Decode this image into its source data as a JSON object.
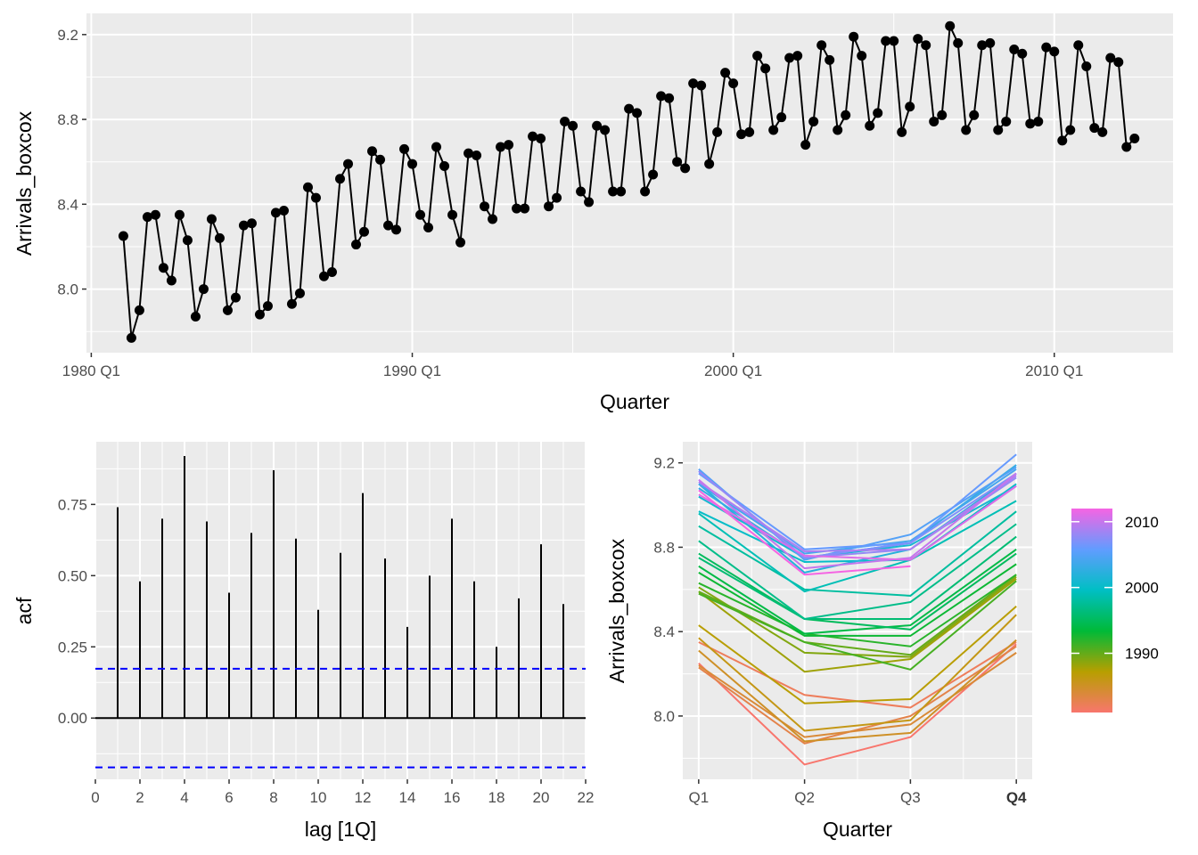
{
  "chart_data": [
    {
      "type": "line",
      "panel": "time-plot",
      "xlabel": "Quarter",
      "ylabel": "Arrivals_boxcox",
      "x_tick_labels": [
        "1980 Q1",
        "1990 Q1",
        "2000 Q1",
        "2010 Q1"
      ],
      "x_tick_years": [
        1980,
        1990,
        2000,
        2010
      ],
      "y_ticks": [
        8.0,
        8.4,
        8.8,
        9.2
      ],
      "y_tick_labels": [
        "8.0",
        "8.4",
        "8.8",
        "9.2"
      ],
      "xlim": [
        1979.85,
        2013.7
      ],
      "ylim": [
        7.7,
        9.3
      ],
      "grid": true,
      "markers": true,
      "series_start": "1981 Q1",
      "values": [
        8.25,
        7.77,
        7.9,
        8.34,
        8.35,
        8.1,
        8.04,
        8.35,
        8.23,
        7.87,
        8.0,
        8.33,
        8.24,
        7.9,
        7.96,
        8.3,
        8.31,
        7.88,
        7.92,
        8.36,
        8.37,
        7.93,
        7.98,
        8.48,
        8.43,
        8.06,
        8.08,
        8.52,
        8.59,
        8.21,
        8.27,
        8.65,
        8.61,
        8.3,
        8.28,
        8.66,
        8.59,
        8.35,
        8.29,
        8.67,
        8.58,
        8.35,
        8.22,
        8.64,
        8.63,
        8.39,
        8.33,
        8.67,
        8.68,
        8.38,
        8.38,
        8.72,
        8.71,
        8.39,
        8.43,
        8.79,
        8.77,
        8.46,
        8.41,
        8.77,
        8.75,
        8.46,
        8.46,
        8.85,
        8.83,
        8.46,
        8.54,
        8.91,
        8.9,
        8.6,
        8.57,
        8.97,
        8.96,
        8.59,
        8.74,
        9.02,
        8.97,
        8.73,
        8.74,
        9.1,
        9.04,
        8.75,
        8.81,
        9.09,
        9.1,
        8.68,
        8.79,
        9.15,
        9.08,
        8.75,
        8.82,
        9.19,
        9.1,
        8.77,
        8.83,
        9.17,
        9.17,
        8.74,
        8.86,
        9.18,
        9.15,
        8.79,
        8.82,
        9.24,
        9.16,
        8.75,
        8.82,
        9.15,
        9.16,
        8.75,
        8.79,
        9.13,
        9.11,
        8.78,
        8.79,
        9.14,
        9.12,
        8.7,
        8.75,
        9.15,
        9.05,
        8.76,
        8.74,
        9.09,
        9.07,
        8.67,
        8.71
      ]
    },
    {
      "type": "bar",
      "panel": "acf-plot",
      "xlabel": "lag [1Q]",
      "ylabel": "acf",
      "lags": [
        1,
        2,
        3,
        4,
        5,
        6,
        7,
        8,
        9,
        10,
        11,
        12,
        13,
        14,
        15,
        16,
        17,
        18,
        19,
        20,
        21
      ],
      "values": [
        0.74,
        0.48,
        0.7,
        0.92,
        0.69,
        0.44,
        0.65,
        0.87,
        0.63,
        0.38,
        0.58,
        0.79,
        0.56,
        0.32,
        0.5,
        0.7,
        0.48,
        0.25,
        0.42,
        0.61,
        0.4
      ],
      "ci_upper": 0.173,
      "ci_lower": -0.173,
      "ci_color": "#0000ff",
      "x_ticks": [
        0,
        2,
        4,
        6,
        8,
        10,
        12,
        14,
        16,
        18,
        20,
        22
      ],
      "y_ticks": [
        0.0,
        0.25,
        0.5,
        0.75
      ],
      "y_tick_labels": [
        "0.00",
        "0.25",
        "0.50",
        "0.75"
      ],
      "xlim": [
        0,
        22
      ],
      "ylim": [
        -0.215,
        0.97
      ],
      "grid": true
    },
    {
      "type": "line",
      "panel": "season-plot",
      "xlabel": "Quarter",
      "ylabel": "Arrivals_boxcox",
      "categories": [
        "Q1",
        "Q2",
        "Q3",
        "Q4"
      ],
      "y_ticks": [
        8.0,
        8.4,
        8.8,
        9.2
      ],
      "y_tick_labels": [
        "8.0",
        "8.4",
        "8.8",
        "9.2"
      ],
      "ylim": [
        7.7,
        9.3
      ],
      "grid": true,
      "legend": {
        "type": "colorbar",
        "placement": "right",
        "range": [
          1981,
          2012
        ],
        "ticks": [
          1990,
          2000,
          2010
        ],
        "tick_labels": [
          "1990",
          "2000",
          "2010"
        ]
      }
    }
  ]
}
